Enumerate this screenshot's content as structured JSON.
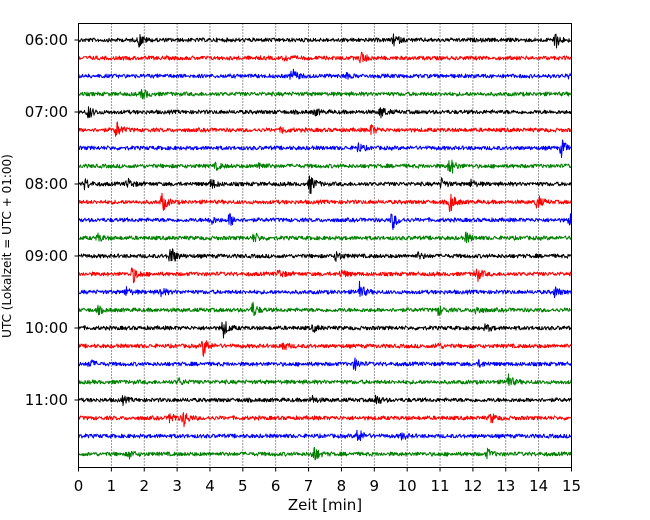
{
  "chart_data": {
    "type": "line",
    "title": "",
    "xlabel": "Zeit  [min]",
    "ylabel": "UTC (Lokalzeit = UTC + 01:00)",
    "xlim": [
      0,
      15
    ],
    "x_ticks": [
      0,
      1,
      2,
      3,
      4,
      5,
      6,
      7,
      8,
      9,
      10,
      11,
      12,
      13,
      14,
      15
    ],
    "x_tick_labels": [
      "0",
      "1",
      "2",
      "3",
      "4",
      "5",
      "6",
      "7",
      "8",
      "9",
      "10",
      "11",
      "12",
      "13",
      "14",
      "15"
    ],
    "y_tick_labels": [
      "06:00",
      "07:00",
      "08:00",
      "09:00",
      "10:00",
      "11:00"
    ],
    "grid": "vertical dotted",
    "trace_interval_minutes": 15,
    "trace_colors": [
      "#000000",
      "#ff0000",
      "#0000ff",
      "#008000"
    ],
    "traces": [
      {
        "start": "06:00",
        "events": [
          [
            1.85,
            0.6
          ],
          [
            9.6,
            0.55
          ],
          [
            14.5,
            0.8
          ]
        ]
      },
      {
        "start": "06:15",
        "events": [
          [
            6.3,
            0.25
          ],
          [
            8.6,
            0.6
          ]
        ]
      },
      {
        "start": "06:30",
        "events": [
          [
            6.5,
            0.7
          ],
          [
            8.1,
            0.3
          ],
          [
            14.95,
            0.4
          ]
        ]
      },
      {
        "start": "06:45",
        "events": [
          [
            1.95,
            0.5
          ]
        ]
      },
      {
        "start": "07:00",
        "events": [
          [
            0.3,
            0.6
          ],
          [
            7.2,
            0.3
          ],
          [
            9.2,
            0.55
          ]
        ]
      },
      {
        "start": "07:15",
        "events": [
          [
            1.15,
            0.8
          ],
          [
            6.2,
            0.3
          ],
          [
            8.9,
            0.45
          ]
        ]
      },
      {
        "start": "07:30",
        "events": [
          [
            8.5,
            0.45
          ],
          [
            14.7,
            0.8
          ]
        ]
      },
      {
        "start": "07:45",
        "events": [
          [
            4.2,
            0.3
          ],
          [
            5.5,
            0.4
          ],
          [
            11.3,
            0.9
          ]
        ]
      },
      {
        "start": "08:00",
        "events": [
          [
            0.2,
            0.5
          ],
          [
            1.5,
            0.5
          ],
          [
            4.05,
            0.45
          ],
          [
            7.05,
            0.9
          ],
          [
            11.05,
            0.45
          ],
          [
            11.95,
            0.35
          ]
        ]
      },
      {
        "start": "08:15",
        "events": [
          [
            2.55,
            0.9
          ],
          [
            11.3,
            1.0
          ],
          [
            13.95,
            0.7
          ]
        ]
      },
      {
        "start": "08:30",
        "events": [
          [
            4.0,
            0.45
          ],
          [
            4.6,
            0.6
          ],
          [
            9.55,
            0.85
          ],
          [
            14.95,
            0.5
          ]
        ]
      },
      {
        "start": "08:45",
        "events": [
          [
            0.6,
            0.35
          ],
          [
            5.35,
            0.45
          ],
          [
            11.8,
            0.5
          ]
        ]
      },
      {
        "start": "09:00",
        "events": [
          [
            2.8,
            1.0
          ],
          [
            7.85,
            0.45
          ],
          [
            10.35,
            0.3
          ]
        ]
      },
      {
        "start": "09:15",
        "events": [
          [
            1.65,
            0.8
          ],
          [
            6.1,
            0.4
          ],
          [
            8.0,
            0.4
          ],
          [
            12.1,
            0.8
          ]
        ]
      },
      {
        "start": "09:30",
        "events": [
          [
            1.45,
            0.4
          ],
          [
            2.5,
            0.45
          ],
          [
            8.55,
            0.85
          ],
          [
            14.5,
            0.5
          ]
        ]
      },
      {
        "start": "09:45",
        "events": [
          [
            0.6,
            0.3
          ],
          [
            5.3,
            0.7
          ],
          [
            10.95,
            0.45
          ],
          [
            12.1,
            0.4
          ]
        ]
      },
      {
        "start": "10:00",
        "events": [
          [
            4.4,
            0.9
          ],
          [
            7.15,
            0.3
          ],
          [
            12.4,
            0.35
          ]
        ]
      },
      {
        "start": "10:15",
        "events": [
          [
            3.8,
            0.9
          ],
          [
            6.2,
            0.45
          ],
          [
            10.9,
            0.3
          ]
        ]
      },
      {
        "start": "10:30",
        "events": [
          [
            0.35,
            0.4
          ],
          [
            8.4,
            0.55
          ],
          [
            12.2,
            0.3
          ]
        ]
      },
      {
        "start": "10:45",
        "events": [
          [
            3.05,
            0.3
          ],
          [
            13.05,
            0.8
          ]
        ]
      },
      {
        "start": "11:00",
        "events": [
          [
            1.35,
            0.3
          ],
          [
            7.1,
            0.35
          ],
          [
            9.05,
            0.5
          ]
        ]
      },
      {
        "start": "11:15",
        "events": [
          [
            2.8,
            0.55
          ],
          [
            3.2,
            0.7
          ],
          [
            12.55,
            0.45
          ]
        ]
      },
      {
        "start": "11:30",
        "events": [
          [
            8.5,
            0.75
          ],
          [
            9.85,
            0.3
          ]
        ]
      },
      {
        "start": "11:45",
        "events": [
          [
            1.55,
            0.35
          ],
          [
            7.15,
            0.8
          ],
          [
            12.45,
            0.4
          ]
        ]
      }
    ]
  }
}
